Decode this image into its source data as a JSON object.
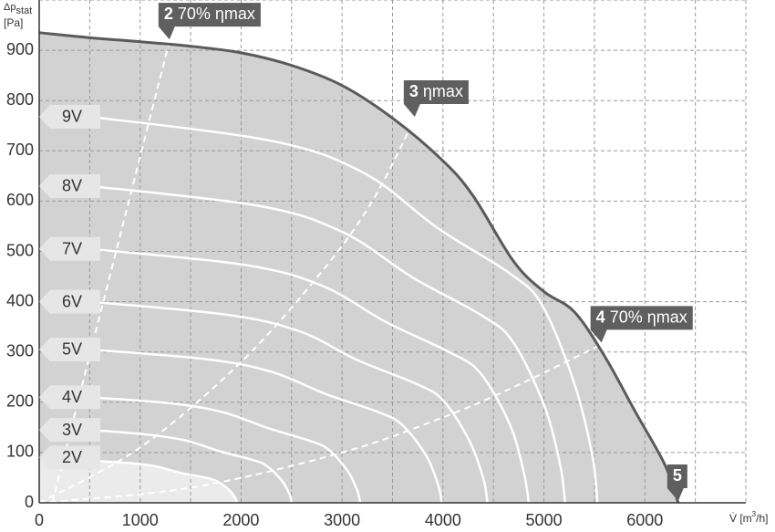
{
  "chart_data": {
    "type": "fan-curve",
    "y_label": {
      "main": "Δp",
      "sub": "stat",
      "unit": "[Pa]"
    },
    "x_label": {
      "main": "V̇ [m",
      "sup": "3",
      "end": "/h]"
    },
    "xlim": [
      0,
      7000
    ],
    "ylim": [
      0,
      1000
    ],
    "xticks": [
      0,
      1000,
      2000,
      3000,
      4000,
      5000,
      6000
    ],
    "yticks": [
      0,
      100,
      200,
      300,
      400,
      500,
      600,
      700,
      800,
      900
    ],
    "x_minor_grid": [
      500,
      1500,
      2500,
      3500,
      4500,
      5500,
      6500,
      7000
    ],
    "y_minor_grid": [
      1000
    ],
    "grid": true,
    "max_curve": {
      "color": "#5a5a5a",
      "fill": "#d2d2d2",
      "x": [
        0,
        500,
        1000,
        1500,
        2000,
        2500,
        3000,
        3500,
        4000,
        4300,
        4700,
        5000,
        5300,
        5600,
        5900,
        6200,
        6330
      ],
      "values": [
        935,
        925,
        917,
        908,
        895,
        870,
        830,
        765,
        680,
        610,
        480,
        420,
        380,
        292,
        183,
        75,
        0
      ]
    },
    "series": [
      {
        "name": "9V",
        "color": "#ffffff",
        "x": [
          500,
          2320,
          3225,
          3950,
          4670,
          4985,
          5300,
          5480,
          5530
        ],
        "values": [
          768,
          719,
          655,
          546,
          455,
          392,
          238,
          93,
          0
        ]
      },
      {
        "name": "8V",
        "color": "#ffffff",
        "x": [
          500,
          2190,
          3020,
          3700,
          4380,
          4690,
          5000,
          5160,
          5210
        ],
        "values": [
          630,
          590,
          537,
          448,
          373,
          321,
          195,
          76,
          0
        ]
      },
      {
        "name": "7V",
        "color": "#ffffff",
        "x": [
          500,
          2040,
          2810,
          3440,
          4070,
          4370,
          4660,
          4800,
          4850
        ],
        "values": [
          505,
          473,
          431,
          359,
          299,
          258,
          157,
          61,
          0
        ]
      },
      {
        "name": "6V",
        "color": "#ffffff",
        "x": [
          500,
          1860,
          2580,
          3150,
          3730,
          4000,
          4260,
          4400,
          4440
        ],
        "values": [
          400,
          374,
          341,
          284,
          237,
          204,
          124,
          48,
          0
        ]
      },
      {
        "name": "5V",
        "color": "#ffffff",
        "x": [
          500,
          1680,
          2310,
          2830,
          3350,
          3590,
          3830,
          3950,
          3990
        ],
        "values": [
          305,
          285,
          260,
          217,
          181,
          156,
          95,
          37,
          0
        ]
      },
      {
        "name": "4V",
        "color": "#ffffff",
        "x": [
          500,
          1340,
          1840,
          2260,
          2670,
          2860,
          3050,
          3150,
          3180
        ],
        "values": [
          210,
          197,
          179,
          149,
          124,
          107,
          65,
          25,
          0
        ]
      },
      {
        "name": "3V",
        "color": "#ffffff",
        "x": [
          500,
          1050,
          1450,
          1780,
          2100,
          2250,
          2400,
          2480,
          2500
        ],
        "values": [
          145,
          136,
          124,
          103,
          86,
          74,
          45,
          17,
          0
        ]
      },
      {
        "name": "2V",
        "color": "#ffffff",
        "x": [
          0,
          820,
          1140,
          1390,
          1650,
          1760,
          1880,
          1940,
          1960
        ],
        "values": [
          90,
          80,
          73,
          60,
          50,
          43,
          26,
          10,
          0
        ]
      }
    ],
    "operating_points": [
      {
        "number": "2",
        "text": "70% ηmax",
        "x": [
          130,
          1290
        ],
        "values": [
          0,
          918
        ]
      },
      {
        "number": "3",
        "text": "ηmax",
        "x": [
          0,
          1000,
          2000,
          2800,
          3300,
          3720
        ],
        "values": [
          0,
          110,
          280,
          460,
          600,
          764
        ]
      },
      {
        "number": "4",
        "text": "70% ηmax",
        "x": [
          0,
          1500,
          3000,
          4000,
          4700,
          5570
        ],
        "values": [
          0,
          30,
          100,
          170,
          230,
          315
        ]
      },
      {
        "number": "5",
        "x": [
          6330
        ],
        "values": [
          0
        ]
      }
    ]
  }
}
